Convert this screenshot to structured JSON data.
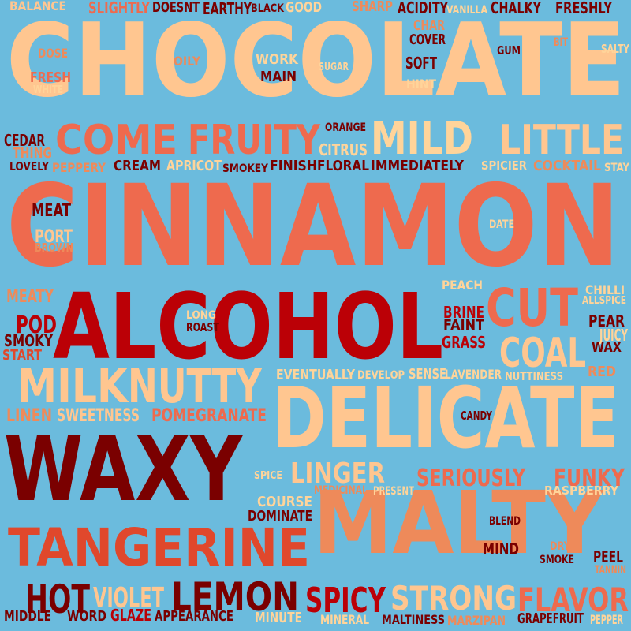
{
  "palette": {
    "background": "#6bbbdd",
    "peach": "#ffc690",
    "salmon": "#ee6a4e",
    "orange_red": "#e0482c",
    "red": "#bb0006",
    "dark_red": "#7a0000",
    "light_peach": "#ffd49a"
  },
  "words": [
    {
      "text": "CHOCOLATE",
      "color": "#ffc690"
    },
    {
      "text": "CINNAMON",
      "color": "#ee6a4e"
    },
    {
      "text": "ALCOHOL",
      "color": "#bb0006"
    },
    {
      "text": "DELICATE",
      "color": "#ffc690"
    },
    {
      "text": "WAXY",
      "color": "#7a0000"
    },
    {
      "text": "MALTY",
      "color": "#ee8a5a"
    },
    {
      "text": "TANGERINE",
      "color": "#e0482c"
    },
    {
      "text": "LEMON",
      "color": "#7a0000"
    },
    {
      "text": "HOT",
      "color": "#7a0000"
    },
    {
      "text": "STRONG",
      "color": "#ffc690"
    },
    {
      "text": "SPICY",
      "color": "#bb0006"
    },
    {
      "text": "FLAVOR",
      "color": "#ee6a4e"
    },
    {
      "text": "VIOLET",
      "color": "#ffc690"
    },
    {
      "text": "COME",
      "color": "#ee6a4e"
    },
    {
      "text": "FRUITY",
      "color": "#ee6a4e"
    },
    {
      "text": "MILD",
      "color": "#ffd49a"
    },
    {
      "text": "LITTLE",
      "color": "#ffc690"
    },
    {
      "text": "CUT",
      "color": "#ee6a4e"
    },
    {
      "text": "COAL",
      "color": "#ffc690"
    },
    {
      "text": "MILK",
      "color": "#ffc690"
    },
    {
      "text": "NUTTY",
      "color": "#ffc690"
    },
    {
      "text": "LINGER",
      "color": "#ffc690"
    },
    {
      "text": "SERIOUSLY",
      "color": "#ee6a4e"
    },
    {
      "text": "FUNKY",
      "color": "#ee6a4e"
    },
    {
      "text": "POMEGRANATE",
      "color": "#ee6a4e"
    },
    {
      "text": "SWEETNESS",
      "color": "#ffc690"
    },
    {
      "text": "LINEN",
      "color": "#ee8a5a"
    },
    {
      "text": "MEAT",
      "color": "#7a0000"
    },
    {
      "text": "PORT",
      "color": "#ffc690"
    },
    {
      "text": "BROWN",
      "color": "#ee8a5a"
    },
    {
      "text": "MEATY",
      "color": "#ee8a5a"
    },
    {
      "text": "POD",
      "color": "#bb0006"
    },
    {
      "text": "SMOKY",
      "color": "#7a0000"
    },
    {
      "text": "START",
      "color": "#e0482c"
    },
    {
      "text": "BALANCE",
      "color": "#ffc690"
    },
    {
      "text": "SLIGHTLY",
      "color": "#ee6a4e"
    },
    {
      "text": "DOESNT",
      "color": "#7a0000"
    },
    {
      "text": "EARTHY",
      "color": "#7a0000"
    },
    {
      "text": "BLACK",
      "color": "#7a0000"
    },
    {
      "text": "GOOD",
      "color": "#ffd49a"
    },
    {
      "text": "SHARP",
      "color": "#ee8a5a"
    },
    {
      "text": "ACIDITY",
      "color": "#7a0000"
    },
    {
      "text": "VANILLA",
      "color": "#ffd49a"
    },
    {
      "text": "CHALKY",
      "color": "#7a0000"
    },
    {
      "text": "FRESHLY",
      "color": "#7a0000"
    },
    {
      "text": "DOSE",
      "color": "#ee8a5a"
    },
    {
      "text": "OILY",
      "color": "#ee8a5a"
    },
    {
      "text": "WORK",
      "color": "#ffd49a"
    },
    {
      "text": "MAIN",
      "color": "#7a0000"
    },
    {
      "text": "SUGAR",
      "color": "#ffd49a"
    },
    {
      "text": "CHAR",
      "color": "#ee8a5a"
    },
    {
      "text": "COVER",
      "color": "#7a0000"
    },
    {
      "text": "SOFT",
      "color": "#7a0000"
    },
    {
      "text": "HINT",
      "color": "#ffd49a"
    },
    {
      "text": "GUM",
      "color": "#7a0000"
    },
    {
      "text": "BIT",
      "color": "#ee8a5a"
    },
    {
      "text": "SALTY",
      "color": "#ffd49a"
    },
    {
      "text": "FRESH",
      "color": "#ee6a4e"
    },
    {
      "text": "WHITE",
      "color": "#ffd49a"
    },
    {
      "text": "CEDAR",
      "color": "#7a0000"
    },
    {
      "text": "THING",
      "color": "#ee8a5a"
    },
    {
      "text": "LOVELY",
      "color": "#7a0000"
    },
    {
      "text": "PEPPERY",
      "color": "#ee8a5a"
    },
    {
      "text": "CREAM",
      "color": "#7a0000"
    },
    {
      "text": "APRICOT",
      "color": "#ffd49a"
    },
    {
      "text": "SMOKEY",
      "color": "#7a0000"
    },
    {
      "text": "FINISH",
      "color": "#7a0000"
    },
    {
      "text": "FLORAL",
      "color": "#7a0000"
    },
    {
      "text": "IMMEDIATELY",
      "color": "#7a0000"
    },
    {
      "text": "SPICIER",
      "color": "#ffd49a"
    },
    {
      "text": "COCKTAIL",
      "color": "#ee8a5a"
    },
    {
      "text": "STAY",
      "color": "#ffd49a"
    },
    {
      "text": "ORANGE",
      "color": "#7a0000"
    },
    {
      "text": "CITRUS",
      "color": "#ffd49a"
    },
    {
      "text": "DATE",
      "color": "#ffd49a"
    },
    {
      "text": "PEACH",
      "color": "#ffd49a"
    },
    {
      "text": "CHILLI",
      "color": "#ffd49a"
    },
    {
      "text": "ALLSPICE",
      "color": "#ffd49a"
    },
    {
      "text": "BRINE",
      "color": "#bb0006"
    },
    {
      "text": "FAINT",
      "color": "#7a0000"
    },
    {
      "text": "GRASS",
      "color": "#bb0006"
    },
    {
      "text": "PEAR",
      "color": "#7a0000"
    },
    {
      "text": "JUICY",
      "color": "#ffd49a"
    },
    {
      "text": "WAX",
      "color": "#7a0000"
    },
    {
      "text": "RED",
      "color": "#ee8a5a"
    },
    {
      "text": "LONG",
      "color": "#ffd49a"
    },
    {
      "text": "ROAST",
      "color": "#7a0000"
    },
    {
      "text": "EVENTUALLY",
      "color": "#ffd49a"
    },
    {
      "text": "DEVELOP",
      "color": "#ffd49a"
    },
    {
      "text": "SENSE",
      "color": "#ffd49a"
    },
    {
      "text": "LAVENDER",
      "color": "#ffd49a"
    },
    {
      "text": "NUTTINESS",
      "color": "#ffd49a"
    },
    {
      "text": "CANDY",
      "color": "#7a0000"
    },
    {
      "text": "SPICE",
      "color": "#ffd49a"
    },
    {
      "text": "MEDICINAL",
      "color": "#ee8a5a"
    },
    {
      "text": "PRESENT",
      "color": "#ffd49a"
    },
    {
      "text": "RASPBERRY",
      "color": "#ffd49a"
    },
    {
      "text": "COURSE",
      "color": "#ffd49a"
    },
    {
      "text": "DOMINATE",
      "color": "#7a0000"
    },
    {
      "text": "BLEND",
      "color": "#7a0000"
    },
    {
      "text": "MIND",
      "color": "#7a0000"
    },
    {
      "text": "DRY",
      "color": "#ee8a5a"
    },
    {
      "text": "SMOKE",
      "color": "#7a0000"
    },
    {
      "text": "PEEL",
      "color": "#7a0000"
    },
    {
      "text": "TANNIN",
      "color": "#ee8a5a"
    },
    {
      "text": "MIDDLE",
      "color": "#7a0000"
    },
    {
      "text": "WORD",
      "color": "#7a0000"
    },
    {
      "text": "GLAZE",
      "color": "#bb0006"
    },
    {
      "text": "APPEARANCE",
      "color": "#7a0000"
    },
    {
      "text": "MINUTE",
      "color": "#ffd49a"
    },
    {
      "text": "MINERAL",
      "color": "#ffd49a"
    },
    {
      "text": "MALTINESS",
      "color": "#7a0000"
    },
    {
      "text": "MARZIPAN",
      "color": "#ee8a5a"
    },
    {
      "text": "GRAPEFRUIT",
      "color": "#7a0000"
    },
    {
      "text": "PEPPER",
      "color": "#ffd49a"
    }
  ]
}
